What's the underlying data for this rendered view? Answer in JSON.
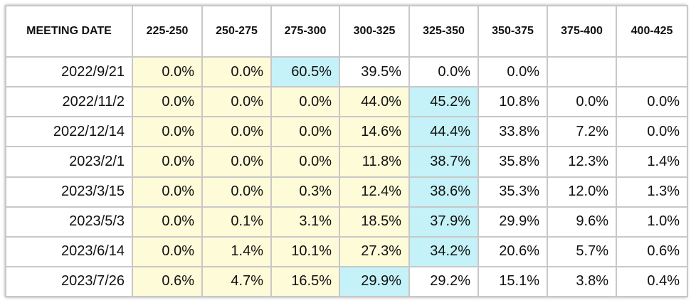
{
  "colors": {
    "yellow": "#fefbd8",
    "cyan": "#c4f2f8",
    "white": "#ffffff",
    "border": "#c8c8c8"
  },
  "table": {
    "headers": [
      "MEETING DATE",
      "225-250",
      "250-275",
      "275-300",
      "300-325",
      "325-350",
      "350-375",
      "375-400",
      "400-425"
    ],
    "rows": [
      {
        "date": "2022/9/21",
        "cells": [
          {
            "value": "0.0%",
            "bg": "yellow"
          },
          {
            "value": "0.0%",
            "bg": "yellow"
          },
          {
            "value": "60.5%",
            "bg": "cyan"
          },
          {
            "value": "39.5%",
            "bg": "white"
          },
          {
            "value": "0.0%",
            "bg": "white"
          },
          {
            "value": "0.0%",
            "bg": "white"
          },
          {
            "value": "",
            "bg": "white"
          },
          {
            "value": "",
            "bg": "white"
          }
        ]
      },
      {
        "date": "2022/11/2",
        "cells": [
          {
            "value": "0.0%",
            "bg": "yellow"
          },
          {
            "value": "0.0%",
            "bg": "yellow"
          },
          {
            "value": "0.0%",
            "bg": "yellow"
          },
          {
            "value": "44.0%",
            "bg": "yellow"
          },
          {
            "value": "45.2%",
            "bg": "cyan"
          },
          {
            "value": "10.8%",
            "bg": "white"
          },
          {
            "value": "0.0%",
            "bg": "white"
          },
          {
            "value": "0.0%",
            "bg": "white"
          }
        ]
      },
      {
        "date": "2022/12/14",
        "cells": [
          {
            "value": "0.0%",
            "bg": "yellow"
          },
          {
            "value": "0.0%",
            "bg": "yellow"
          },
          {
            "value": "0.0%",
            "bg": "yellow"
          },
          {
            "value": "14.6%",
            "bg": "yellow"
          },
          {
            "value": "44.4%",
            "bg": "cyan"
          },
          {
            "value": "33.8%",
            "bg": "white"
          },
          {
            "value": "7.2%",
            "bg": "white"
          },
          {
            "value": "0.0%",
            "bg": "white"
          }
        ]
      },
      {
        "date": "2023/2/1",
        "cells": [
          {
            "value": "0.0%",
            "bg": "yellow"
          },
          {
            "value": "0.0%",
            "bg": "yellow"
          },
          {
            "value": "0.0%",
            "bg": "yellow"
          },
          {
            "value": "11.8%",
            "bg": "yellow"
          },
          {
            "value": "38.7%",
            "bg": "cyan"
          },
          {
            "value": "35.8%",
            "bg": "white"
          },
          {
            "value": "12.3%",
            "bg": "white"
          },
          {
            "value": "1.4%",
            "bg": "white"
          }
        ]
      },
      {
        "date": "2023/3/15",
        "cells": [
          {
            "value": "0.0%",
            "bg": "yellow"
          },
          {
            "value": "0.0%",
            "bg": "yellow"
          },
          {
            "value": "0.3%",
            "bg": "yellow"
          },
          {
            "value": "12.4%",
            "bg": "yellow"
          },
          {
            "value": "38.6%",
            "bg": "cyan"
          },
          {
            "value": "35.3%",
            "bg": "white"
          },
          {
            "value": "12.0%",
            "bg": "white"
          },
          {
            "value": "1.3%",
            "bg": "white"
          }
        ]
      },
      {
        "date": "2023/5/3",
        "cells": [
          {
            "value": "0.0%",
            "bg": "yellow"
          },
          {
            "value": "0.1%",
            "bg": "yellow"
          },
          {
            "value": "3.1%",
            "bg": "yellow"
          },
          {
            "value": "18.5%",
            "bg": "yellow"
          },
          {
            "value": "37.9%",
            "bg": "cyan"
          },
          {
            "value": "29.9%",
            "bg": "white"
          },
          {
            "value": "9.6%",
            "bg": "white"
          },
          {
            "value": "1.0%",
            "bg": "white"
          }
        ]
      },
      {
        "date": "2023/6/14",
        "cells": [
          {
            "value": "0.0%",
            "bg": "yellow"
          },
          {
            "value": "1.4%",
            "bg": "yellow"
          },
          {
            "value": "10.1%",
            "bg": "yellow"
          },
          {
            "value": "27.3%",
            "bg": "yellow"
          },
          {
            "value": "34.2%",
            "bg": "cyan"
          },
          {
            "value": "20.6%",
            "bg": "white"
          },
          {
            "value": "5.7%",
            "bg": "white"
          },
          {
            "value": "0.6%",
            "bg": "white"
          }
        ]
      },
      {
        "date": "2023/7/26",
        "cells": [
          {
            "value": "0.6%",
            "bg": "yellow"
          },
          {
            "value": "4.7%",
            "bg": "yellow"
          },
          {
            "value": "16.5%",
            "bg": "yellow"
          },
          {
            "value": "29.9%",
            "bg": "cyan"
          },
          {
            "value": "29.2%",
            "bg": "white"
          },
          {
            "value": "15.1%",
            "bg": "white"
          },
          {
            "value": "3.8%",
            "bg": "white"
          },
          {
            "value": "0.4%",
            "bg": "white"
          }
        ]
      }
    ]
  }
}
